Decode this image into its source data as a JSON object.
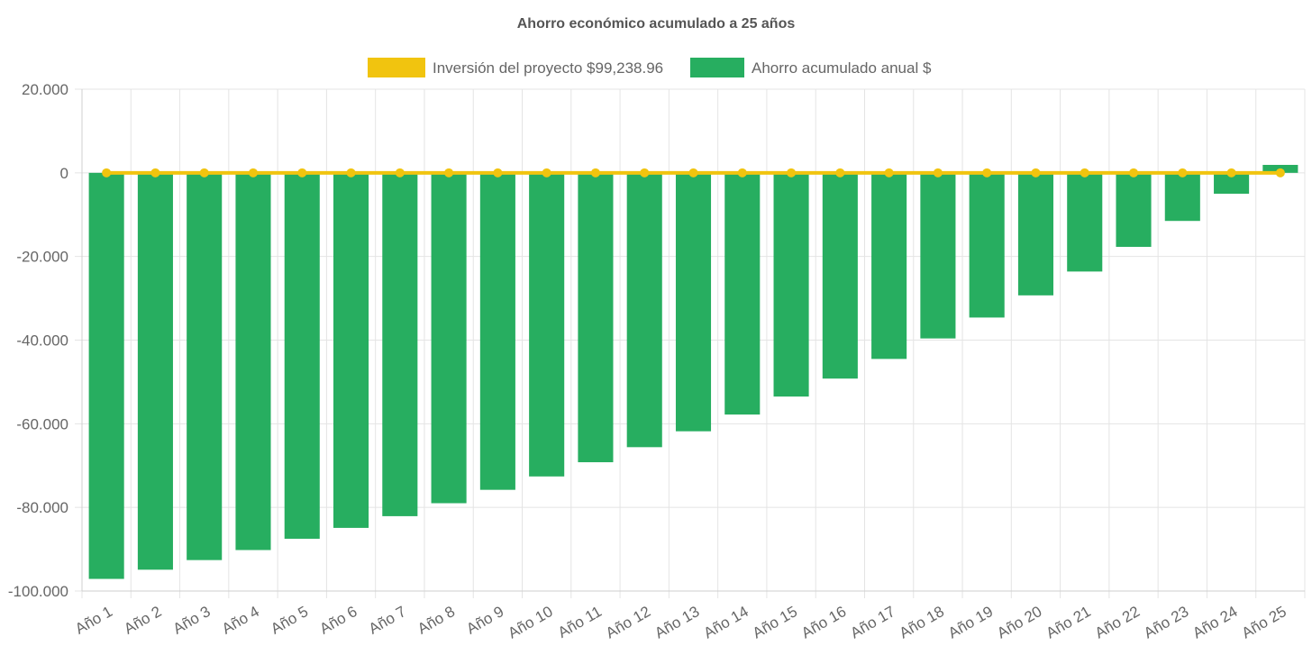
{
  "chart_data": {
    "type": "bar",
    "title": "Ahorro económico acumulado a 25 años",
    "xlabel": "",
    "ylabel": "",
    "ylim": [
      -100000,
      20000
    ],
    "yticks": [
      20000,
      0,
      -20000,
      -40000,
      -60000,
      -80000,
      -100000
    ],
    "ytick_labels": [
      "20.000",
      "0",
      "-20.000",
      "-40.000",
      "-60.000",
      "-80.000",
      "-100.000"
    ],
    "grid": true,
    "legend_position": "top",
    "categories": [
      "Año 1",
      "Año 2",
      "Año 3",
      "Año 4",
      "Año 5",
      "Año 6",
      "Año 7",
      "Año 8",
      "Año 9",
      "Año 10",
      "Año 11",
      "Año 12",
      "Año 13",
      "Año 14",
      "Año 15",
      "Año 16",
      "Año 17",
      "Año 18",
      "Año 19",
      "Año 20",
      "Año 21",
      "Año 22",
      "Año 23",
      "Año 24",
      "Año 25"
    ],
    "series": [
      {
        "name": "Inversión del proyecto $99,238.96",
        "type": "line",
        "color": "#f1c40f",
        "values": [
          0,
          0,
          0,
          0,
          0,
          0,
          0,
          0,
          0,
          0,
          0,
          0,
          0,
          0,
          0,
          0,
          0,
          0,
          0,
          0,
          0,
          0,
          0,
          0,
          0
        ]
      },
      {
        "name": "Ahorro acumulado anual $",
        "type": "bar",
        "color": "#27ae60",
        "values": [
          -97100,
          -94900,
          -92600,
          -90200,
          -87500,
          -84900,
          -82100,
          -79000,
          -75800,
          -72600,
          -69200,
          -65600,
          -61800,
          -57800,
          -53500,
          -49200,
          -44500,
          -39600,
          -34600,
          -29300,
          -23600,
          -17700,
          -11500,
          -5000,
          1900
        ]
      }
    ]
  }
}
